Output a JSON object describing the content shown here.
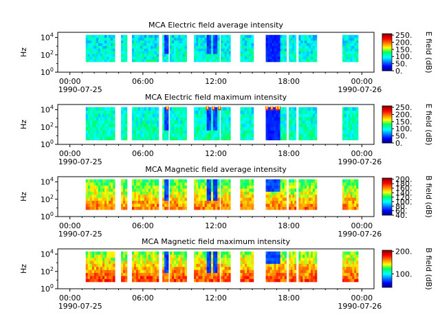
{
  "figure": {
    "panel_count": 4
  },
  "chart_data": [
    {
      "type": "heatmap",
      "title": "MCA  Electric field average intensity",
      "ylabel": "Hz",
      "colorbar_label": "E field (dB)",
      "colorbar_ticks": [
        "0.",
        "50.",
        "100.",
        "150.",
        "200.",
        "250."
      ],
      "colorbar_range": [
        0,
        260
      ],
      "x_ticks": [
        "00:00",
        "06:00",
        "12:00",
        "18:00",
        "00:00"
      ],
      "x_date_start": "1990-07-25",
      "x_date_end": "1990-07-26",
      "xlim_hours": [
        -1,
        25
      ],
      "y_ticks": [
        "10^0",
        "10^2",
        "10^4"
      ],
      "ylim_log10": [
        0,
        4.6
      ],
      "ysignal_log10": [
        1.2,
        4.3
      ],
      "data_intervals_hours": [
        [
          1.3,
          3.7
        ],
        [
          4.2,
          4.7
        ],
        [
          5.1,
          7.3
        ],
        [
          7.6,
          8.1
        ],
        [
          8.2,
          9.6
        ],
        [
          10.2,
          12.3
        ],
        [
          12.4,
          13.2
        ],
        [
          14.0,
          15.1
        ],
        [
          16.1,
          17.8
        ],
        [
          18.0,
          18.6
        ],
        [
          18.8,
          20.3
        ],
        [
          22.4,
          23.7
        ]
      ],
      "intensity_level": 0.35,
      "max_events_hours": []
    },
    {
      "type": "heatmap",
      "title": "MCA  Electric field maximum intensity",
      "ylabel": "Hz",
      "colorbar_label": "E field (dB)",
      "colorbar_ticks": [
        "0.",
        "50.",
        "100.",
        "150.",
        "200.",
        "250."
      ],
      "colorbar_range": [
        0,
        260
      ],
      "x_ticks": [
        "00:00",
        "06:00",
        "12:00",
        "18:00",
        "00:00"
      ],
      "x_date_start": "1990-07-25",
      "x_date_end": "1990-07-26",
      "xlim_hours": [
        -1,
        25
      ],
      "y_ticks": [
        "10^0",
        "10^2",
        "10^4"
      ],
      "ylim_log10": [
        0,
        4.6
      ],
      "ysignal_log10": [
        0.5,
        4.3
      ],
      "data_intervals_hours": [
        [
          1.3,
          3.7
        ],
        [
          4.2,
          4.7
        ],
        [
          5.1,
          7.3
        ],
        [
          7.6,
          8.1
        ],
        [
          8.2,
          9.6
        ],
        [
          10.2,
          12.3
        ],
        [
          12.4,
          13.2
        ],
        [
          14.0,
          15.1
        ],
        [
          16.1,
          17.8
        ],
        [
          18.0,
          18.6
        ],
        [
          18.8,
          20.3
        ],
        [
          22.4,
          23.7
        ]
      ],
      "intensity_level": 0.38,
      "max_events_hours": [
        8.0,
        11.3,
        11.8,
        12.3,
        16.2,
        16.6,
        17.0,
        17.2
      ]
    },
    {
      "type": "heatmap",
      "title": "MCA  Magnetic field average intensity",
      "ylabel": "Hz",
      "colorbar_label": "B field (dB)",
      "colorbar_ticks": [
        "40.",
        "60.",
        "80.",
        "100.",
        "120.",
        "140.",
        "160.",
        "180.",
        "200."
      ],
      "colorbar_range": [
        40,
        205
      ],
      "x_ticks": [
        "00:00",
        "06:00",
        "12:00",
        "18:00",
        "00:00"
      ],
      "x_date_start": "1990-07-25",
      "x_date_end": "1990-07-26",
      "xlim_hours": [
        -1,
        25
      ],
      "y_ticks": [
        "10^0",
        "10^2",
        "10^4"
      ],
      "ylim_log10": [
        0,
        4.6
      ],
      "ysignal_log10": [
        0.8,
        4.3
      ],
      "data_intervals_hours": [
        [
          1.3,
          3.7
        ],
        [
          4.2,
          4.7
        ],
        [
          5.1,
          7.3
        ],
        [
          7.6,
          8.1
        ],
        [
          8.2,
          9.6
        ],
        [
          10.2,
          12.3
        ],
        [
          12.4,
          13.2
        ],
        [
          14.0,
          15.1
        ],
        [
          16.1,
          17.8
        ],
        [
          18.0,
          18.6
        ],
        [
          18.8,
          20.3
        ],
        [
          22.4,
          23.7
        ]
      ],
      "intensity_level": 0.5,
      "max_events_hours": []
    },
    {
      "type": "heatmap",
      "title": "MCA  Magnetic field maximum intensity",
      "ylabel": "Hz",
      "colorbar_label": "B field (dB)",
      "colorbar_ticks": [
        "100.",
        "200."
      ],
      "colorbar_range": [
        40,
        205
      ],
      "x_ticks": [
        "00:00",
        "06:00",
        "12:00",
        "18:00",
        "00:00"
      ],
      "x_date_start": "1990-07-25",
      "x_date_end": "1990-07-26",
      "xlim_hours": [
        -1,
        25
      ],
      "y_ticks": [
        "10^0",
        "10^2",
        "10^4"
      ],
      "ylim_log10": [
        0,
        4.6
      ],
      "ysignal_log10": [
        0.8,
        4.3
      ],
      "data_intervals_hours": [
        [
          1.3,
          3.7
        ],
        [
          4.2,
          4.7
        ],
        [
          5.1,
          7.3
        ],
        [
          7.6,
          8.1
        ],
        [
          8.2,
          9.6
        ],
        [
          10.2,
          12.3
        ],
        [
          12.4,
          13.2
        ],
        [
          14.0,
          15.1
        ],
        [
          16.1,
          17.8
        ],
        [
          18.0,
          18.6
        ],
        [
          18.8,
          20.3
        ],
        [
          22.4,
          23.7
        ]
      ],
      "intensity_level": 0.55,
      "max_events_hours": []
    }
  ]
}
